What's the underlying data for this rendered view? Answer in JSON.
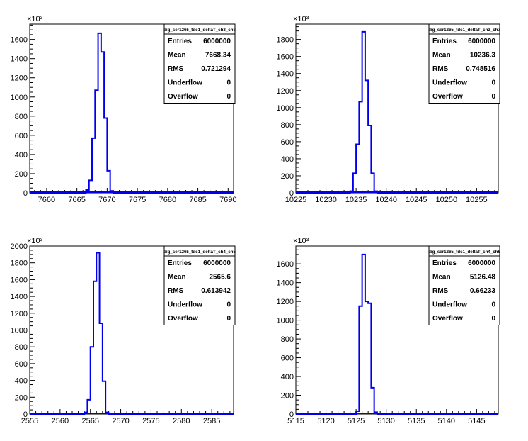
{
  "chart_data": [
    {
      "type": "histogram",
      "title": "dig_ser1265_tdc1_deltaT_ch3_ch8",
      "exponent_label": "×10³",
      "xlim": [
        7657.2,
        7690.9
      ],
      "ylim": [
        0,
        1760
      ],
      "xticks": [
        7660,
        7665,
        7670,
        7675,
        7680,
        7685,
        7690
      ],
      "yticks": [
        0,
        200,
        400,
        600,
        800,
        1000,
        1200,
        1400,
        1600
      ],
      "bins_x": [
        7666.5,
        7667.0,
        7667.5,
        7668.0,
        7668.5,
        7669.0,
        7669.5,
        7670.0,
        7670.5
      ],
      "bins_y": [
        30,
        130,
        570,
        1070,
        1665,
        1470,
        780,
        230,
        20,
        0
      ],
      "stats": [
        {
          "label": "Entries",
          "value": "6000000"
        },
        {
          "label": "Mean",
          "value": "7668.34"
        },
        {
          "label": "RMS",
          "value": "0.721294"
        },
        {
          "label": "Underflow",
          "value": "0"
        },
        {
          "label": "Overflow",
          "value": "0"
        }
      ]
    },
    {
      "type": "histogram",
      "title": "dig_ser1265_tdc1_deltaT_ch3_ch7",
      "exponent_label": "×10³",
      "xlim": [
        10225,
        10258.6
      ],
      "ylim": [
        0,
        1980
      ],
      "xticks": [
        10225,
        10230,
        10235,
        10240,
        10245,
        10250,
        10255
      ],
      "yticks": [
        0,
        200,
        400,
        600,
        800,
        1000,
        1200,
        1400,
        1600,
        1800
      ],
      "bins_x": [
        10234.0,
        10234.5,
        10235.0,
        10235.5,
        10236.0,
        10236.5,
        10237.0,
        10237.5,
        10238.0
      ],
      "bins_y": [
        20,
        230,
        570,
        1070,
        1890,
        1320,
        790,
        230,
        20,
        0
      ],
      "stats": [
        {
          "label": "Entries",
          "value": "6000000"
        },
        {
          "label": "Mean",
          "value": "10236.3"
        },
        {
          "label": "RMS",
          "value": "0.748516"
        },
        {
          "label": "Underflow",
          "value": "0"
        },
        {
          "label": "Overflow",
          "value": "0"
        }
      ]
    },
    {
      "type": "histogram",
      "title": "dig_ser1265_tdc1_deltaT_ch4_ch5",
      "exponent_label": "×10³",
      "xlim": [
        2555,
        2588.6
      ],
      "ylim": [
        0,
        2000
      ],
      "xticks": [
        2555,
        2560,
        2565,
        2570,
        2575,
        2580,
        2585
      ],
      "yticks": [
        0,
        200,
        400,
        600,
        800,
        1000,
        1200,
        1400,
        1600,
        1800,
        2000
      ],
      "bins_x": [
        2564.0,
        2564.5,
        2565.0,
        2565.5,
        2566.0,
        2566.5,
        2567.0,
        2567.5
      ],
      "bins_y": [
        20,
        170,
        800,
        1580,
        1920,
        1080,
        390,
        20,
        0
      ],
      "stats": [
        {
          "label": "Entries",
          "value": "6000000"
        },
        {
          "label": "Mean",
          "value": "2565.6"
        },
        {
          "label": "RMS",
          "value": "0.613942"
        },
        {
          "label": "Underflow",
          "value": "0"
        },
        {
          "label": "Overflow",
          "value": "0"
        }
      ]
    },
    {
      "type": "histogram",
      "title": "dig_ser1265_tdc1_deltaT_ch4_ch6",
      "exponent_label": "×10³",
      "xlim": [
        5115,
        5148.6
      ],
      "ylim": [
        0,
        1790
      ],
      "xticks": [
        5115,
        5120,
        5125,
        5130,
        5135,
        5140,
        5145
      ],
      "yticks": [
        0,
        200,
        400,
        600,
        800,
        1000,
        1200,
        1400,
        1600
      ],
      "bins_x": [
        5125.0,
        5125.5,
        5126.0,
        5126.5,
        5127.0,
        5127.5,
        5128.0,
        5128.5
      ],
      "bins_y": [
        30,
        1150,
        1700,
        1200,
        1180,
        280,
        20,
        0,
        0
      ],
      "stats": [
        {
          "label": "Entries",
          "value": "6000000"
        },
        {
          "label": "Mean",
          "value": "5126.48"
        },
        {
          "label": "RMS",
          "value": "0.66233"
        },
        {
          "label": "Underflow",
          "value": "0"
        },
        {
          "label": "Overflow",
          "value": "0"
        }
      ]
    }
  ]
}
